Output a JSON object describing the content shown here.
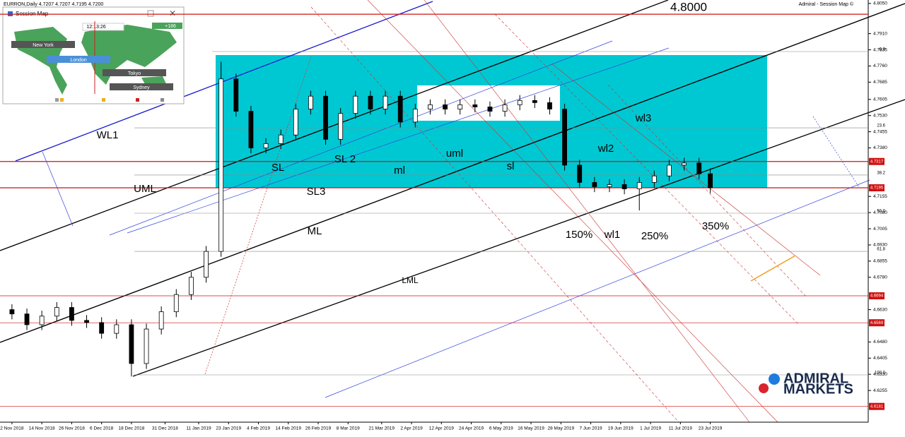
{
  "header": {
    "symbol": "EURRON,Daily 4.7207 4.7207 4.7195 4.7200",
    "indicator": "Admiral - Session Map ©"
  },
  "session_map": {
    "title": "Session Map",
    "time": "12:13:26",
    "offset": "+186",
    "cities": [
      "New York",
      "London",
      "Tokyo",
      "Sydney"
    ]
  },
  "logo": {
    "line1": "ADMIRAL",
    "line2": "MARKETS"
  },
  "chart_data": {
    "type": "candlestick",
    "x": [
      0,
      4,
      8,
      12,
      16,
      20,
      24,
      28,
      32,
      36,
      40,
      44,
      48,
      52,
      56,
      60,
      64,
      68,
      72,
      76,
      80,
      84,
      88,
      92,
      96,
      100,
      104,
      108,
      112,
      116,
      120,
      124,
      128,
      132,
      136,
      140,
      144,
      148,
      152,
      156,
      160,
      164,
      168,
      172,
      176,
      180,
      184,
      187
    ],
    "series": [
      {
        "name": "EURRON",
        "open": [
          4.663,
          4.661,
          4.656,
          4.66,
          4.664,
          4.658,
          4.657,
          4.652,
          4.656,
          4.638,
          4.654,
          4.662,
          4.67,
          4.678,
          4.69,
          4.77,
          4.755,
          4.738,
          4.74,
          4.744,
          4.756,
          4.762,
          4.742,
          4.754,
          4.762,
          4.756,
          4.762,
          4.75,
          4.756,
          4.758,
          4.756,
          4.758,
          4.757,
          4.755,
          4.758,
          4.76,
          4.759,
          4.756,
          4.73,
          4.722,
          4.72,
          4.721,
          4.719,
          4.722,
          4.725,
          4.73,
          4.731,
          4.726
        ],
        "high": [
          4.6655,
          4.6635,
          4.6625,
          4.6665,
          4.6665,
          4.6605,
          4.6595,
          4.6585,
          4.6585,
          4.6565,
          4.6645,
          4.6725,
          4.6805,
          4.6925,
          4.778,
          4.7725,
          4.7575,
          4.7425,
          4.7465,
          4.7585,
          4.7645,
          4.7645,
          4.7565,
          4.7645,
          4.7645,
          4.7645,
          4.7645,
          4.7585,
          4.7605,
          4.7605,
          4.7605,
          4.7605,
          4.7595,
          4.7605,
          4.7625,
          4.7625,
          4.7615,
          4.7585,
          4.7325,
          4.7245,
          4.7235,
          4.7235,
          4.7245,
          4.7275,
          4.7325,
          4.7335,
          4.7335,
          4.7285
        ],
        "low": [
          4.6585,
          4.6535,
          4.6535,
          4.6575,
          4.6555,
          4.6545,
          4.6495,
          4.6495,
          4.632,
          4.6355,
          4.6515,
          4.6595,
          4.6675,
          4.6755,
          4.6875,
          4.7525,
          4.7355,
          4.7355,
          4.7375,
          4.7415,
          4.7535,
          4.7395,
          4.7395,
          4.7515,
          4.7535,
          4.7535,
          4.7475,
          4.7475,
          4.7535,
          4.7535,
          4.7535,
          4.7545,
          4.7525,
          4.7525,
          4.7555,
          4.7565,
          4.7535,
          4.7275,
          4.7195,
          4.7175,
          4.7175,
          4.7165,
          4.709,
          4.7195,
          4.7225,
          4.7275,
          4.7235,
          4.717
        ],
        "close": [
          4.661,
          4.656,
          4.66,
          4.664,
          4.658,
          4.657,
          4.652,
          4.656,
          4.638,
          4.654,
          4.662,
          4.67,
          4.678,
          4.69,
          4.77,
          4.755,
          4.738,
          4.74,
          4.744,
          4.756,
          4.762,
          4.742,
          4.754,
          4.762,
          4.756,
          4.762,
          4.75,
          4.756,
          4.758,
          4.756,
          4.758,
          4.757,
          4.755,
          4.758,
          4.76,
          4.759,
          4.756,
          4.73,
          4.722,
          4.72,
          4.721,
          4.719,
          4.722,
          4.725,
          4.73,
          4.731,
          4.726,
          4.7195
        ]
      }
    ],
    "xlim": [
      -3.2,
      229.3
    ],
    "xticks": [
      {
        "value": 0,
        "label": "2 Nov 2018"
      },
      {
        "value": 8,
        "label": "14 Nov 2018"
      },
      {
        "value": 16,
        "label": "26 Nov 2018"
      },
      {
        "value": 24,
        "label": "6 Dec 2018"
      },
      {
        "value": 32,
        "label": "18 Dec 2018"
      },
      {
        "value": 41,
        "label": "31 Dec 2018"
      },
      {
        "value": 50,
        "label": "11 Jan 2019"
      },
      {
        "value": 58,
        "label": "23 Jan 2019"
      },
      {
        "value": 66,
        "label": "4 Feb 2019"
      },
      {
        "value": 74,
        "label": "14 Feb 2019"
      },
      {
        "value": 82,
        "label": "26 Feb 2019"
      },
      {
        "value": 90,
        "label": "8 Mar 2019"
      },
      {
        "value": 99,
        "label": "21 Mar 2019"
      },
      {
        "value": 107,
        "label": "2 Apr 2019"
      },
      {
        "value": 115,
        "label": "12 Apr 2019"
      },
      {
        "value": 123,
        "label": "24 Apr 2019"
      },
      {
        "value": 131,
        "label": "6 May 2019"
      },
      {
        "value": 139,
        "label": "16 May 2019"
      },
      {
        "value": 147,
        "label": "28 May 2019"
      },
      {
        "value": 155,
        "label": "7 Jun 2019"
      },
      {
        "value": 163,
        "label": "19 Jun 2019"
      },
      {
        "value": 171,
        "label": "1 Jul 2019"
      },
      {
        "value": 179,
        "label": "11 Jul 2019"
      },
      {
        "value": 187,
        "label": "23 Jul 2019"
      }
    ],
    "ylim": [
      4.6108,
      4.8066
    ],
    "yticks": [
      {
        "value": 4.805,
        "label": "4.8050"
      },
      {
        "value": 4.791,
        "label": "4.7910"
      },
      {
        "value": 4.7835,
        "label": "4.7835"
      },
      {
        "value": 4.776,
        "label": "4.7760"
      },
      {
        "value": 4.7685,
        "label": "4.7685"
      },
      {
        "value": 4.7605,
        "label": "4.7605"
      },
      {
        "value": 4.753,
        "label": "4.7530"
      },
      {
        "value": 4.7455,
        "label": "4.7455"
      },
      {
        "value": 4.738,
        "label": "4.7380"
      },
      {
        "value": 4.7155,
        "label": "4.7155"
      },
      {
        "value": 4.708,
        "label": "4.7080"
      },
      {
        "value": 4.7005,
        "label": "4.7005"
      },
      {
        "value": 4.693,
        "label": "4.6930"
      },
      {
        "value": 4.6855,
        "label": "4.6855"
      },
      {
        "value": 4.678,
        "label": "4.6780"
      },
      {
        "value": 4.663,
        "label": "4.6630"
      },
      {
        "value": 4.648,
        "label": "4.6480"
      },
      {
        "value": 4.6405,
        "label": "4.6405"
      },
      {
        "value": 4.633,
        "label": "4.6330"
      },
      {
        "value": 4.6255,
        "label": "4.6255"
      }
    ],
    "price_levels": [
      {
        "value": 4.8,
        "label": "4.8000"
      },
      4.7317,
      4.7195,
      4.6694,
      4.6569,
      4.6181
    ],
    "fib_levels": [
      {
        "value": 0,
        "label": "0.0"
      },
      {
        "value": 23.6,
        "label": "23.6"
      },
      38.2,
      {
        "value": 50,
        "label": "50.0"
      },
      61.8,
      {
        "value": 100,
        "label": "100.0"
      }
    ],
    "annotations": [
      "WL1",
      "SL",
      "SL 2",
      "SL3",
      "UML",
      "ML",
      "LML",
      "uml",
      "ml",
      "sl",
      "wl2",
      "wl3",
      "wl1",
      "150%",
      "250%",
      "350%"
    ]
  }
}
